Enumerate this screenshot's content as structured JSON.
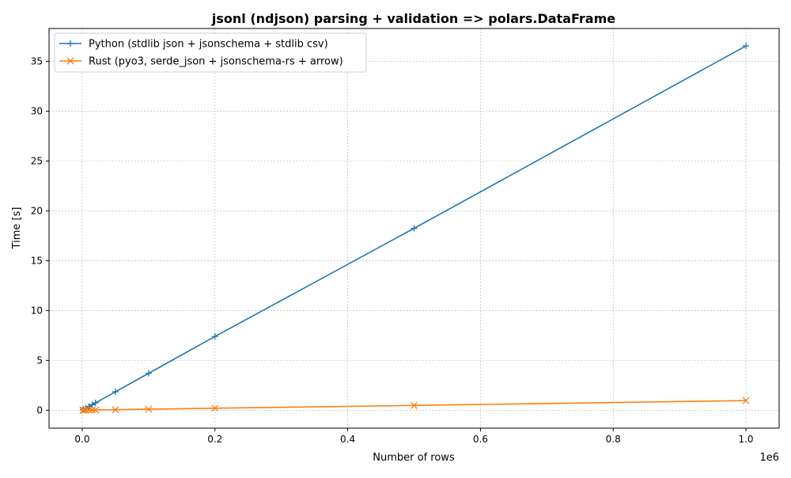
{
  "chart_data": {
    "type": "line",
    "title": "jsonl (ndjson) parsing + validation => polars.DataFrame",
    "xlabel": "Number of rows",
    "ylabel": "Time [s]",
    "x_offset_label": "1e6",
    "xlim": [
      -50000,
      1050000
    ],
    "ylim": [
      -1.8,
      38.3
    ],
    "grid": true,
    "legend_position": "upper-left",
    "x_ticks": [
      {
        "value": 0,
        "label": "0.0"
      },
      {
        "value": 200000,
        "label": "0.2"
      },
      {
        "value": 400000,
        "label": "0.4"
      },
      {
        "value": 600000,
        "label": "0.6"
      },
      {
        "value": 800000,
        "label": "0.8"
      },
      {
        "value": 1000000,
        "label": "1.0"
      }
    ],
    "y_ticks": [
      {
        "value": 0,
        "label": "0"
      },
      {
        "value": 5,
        "label": "5"
      },
      {
        "value": 10,
        "label": "10"
      },
      {
        "value": 15,
        "label": "15"
      },
      {
        "value": 20,
        "label": "20"
      },
      {
        "value": 25,
        "label": "25"
      },
      {
        "value": 30,
        "label": "30"
      },
      {
        "value": 35,
        "label": "35"
      }
    ],
    "x": [
      1000,
      2000,
      5000,
      10000,
      15000,
      20000,
      50000,
      100000,
      200000,
      500000,
      1000000
    ],
    "series": [
      {
        "name": "Python (stdlib json + jsonschema + stdlib csv)",
        "color": "#1f77b4",
        "marker": "plus",
        "values": [
          0.04,
          0.08,
          0.19,
          0.37,
          0.55,
          0.73,
          1.85,
          3.7,
          7.4,
          18.25,
          36.55
        ]
      },
      {
        "name": "Rust (pyo3, serde_json + jsonschema-rs + arrow)",
        "color": "#ff7f0e",
        "marker": "x",
        "values": [
          0.001,
          0.002,
          0.005,
          0.01,
          0.015,
          0.02,
          0.05,
          0.1,
          0.2,
          0.48,
          0.97
        ]
      }
    ]
  }
}
